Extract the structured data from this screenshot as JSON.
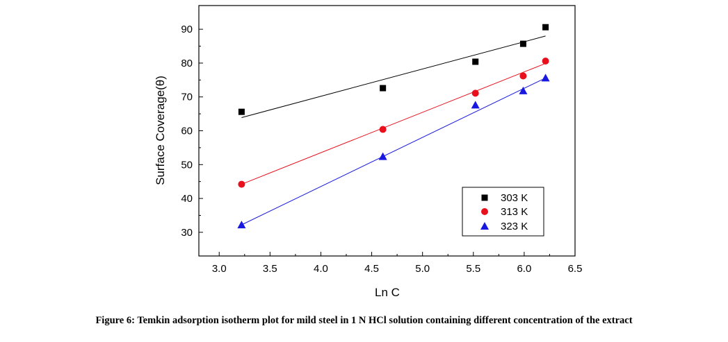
{
  "figure": {
    "caption": "Figure 6: Temkin adsorption isotherm plot for mild steel in 1 N HCl solution containing different concentration of the extract"
  },
  "chart_data": {
    "type": "scatter",
    "xlabel": "Ln C",
    "ylabel": "Surface Coverage(θ)",
    "xlim": [
      2.8,
      6.5
    ],
    "ylim": [
      23,
      97
    ],
    "x_ticks": [
      "3.0",
      "3.5",
      "4.0",
      "4.5",
      "5.0",
      "5.5",
      "6.0",
      "6.5"
    ],
    "y_ticks": [
      "30",
      "40",
      "50",
      "60",
      "70",
      "80",
      "90"
    ],
    "legend_position": "lower-right",
    "grid": false,
    "series": [
      {
        "name": "303 K",
        "color": "#000000",
        "marker": "square",
        "points": [
          [
            3.22,
            65.6
          ],
          [
            4.61,
            72.6
          ],
          [
            5.52,
            80.4
          ],
          [
            5.99,
            85.7
          ],
          [
            6.21,
            90.6
          ]
        ],
        "fit_line": [
          [
            3.22,
            63.9
          ],
          [
            6.21,
            88.0
          ]
        ]
      },
      {
        "name": "313 K",
        "color": "#e8101c",
        "marker": "circle",
        "points": [
          [
            3.22,
            44.2
          ],
          [
            4.61,
            60.4
          ],
          [
            5.52,
            71.1
          ],
          [
            5.99,
            76.2
          ],
          [
            6.21,
            80.6
          ]
        ],
        "fit_line": [
          [
            3.22,
            44.2
          ],
          [
            6.21,
            79.9
          ]
        ]
      },
      {
        "name": "323 K",
        "color": "#1818e0",
        "marker": "triangle",
        "points": [
          [
            3.22,
            32.2
          ],
          [
            4.61,
            52.4
          ],
          [
            5.52,
            67.6
          ],
          [
            5.99,
            71.8
          ],
          [
            6.21,
            75.6
          ]
        ],
        "fit_line": [
          [
            3.22,
            32.2
          ],
          [
            6.21,
            75.6
          ]
        ]
      }
    ]
  }
}
